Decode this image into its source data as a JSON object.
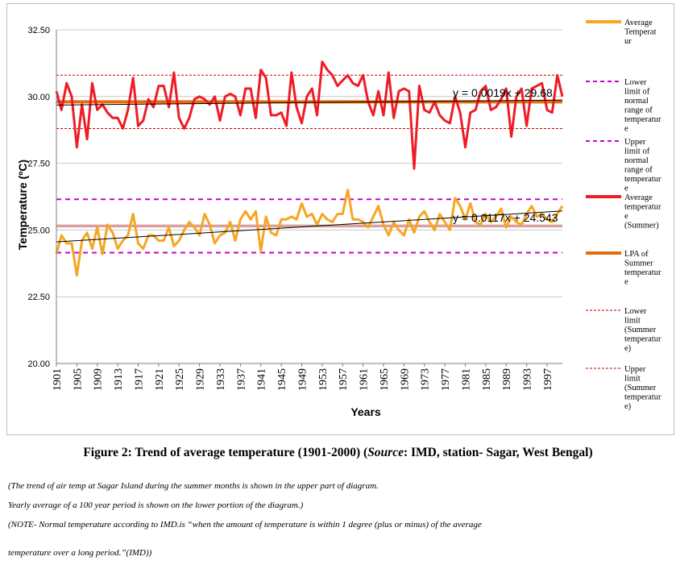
{
  "chart_data": {
    "type": "line",
    "xlabel": "Years",
    "ylabel": "Temperature (ºC)",
    "ylim": [
      20,
      32.5
    ],
    "yticks": [
      "20.00",
      "22.50",
      "25.00",
      "27.50",
      "30.00",
      "32.50"
    ],
    "xticks": [
      "1901",
      "1905",
      "1909",
      "1913",
      "1917",
      "1921",
      "1925",
      "1929",
      "1933",
      "1937",
      "1941",
      "1945",
      "1949",
      "1953",
      "1957",
      "1961",
      "1965",
      "1969",
      "1973",
      "1977",
      "1981",
      "1985",
      "1989",
      "1993",
      "1997"
    ],
    "x_start": 1901,
    "series": [
      {
        "name": "Average Temperature",
        "color": "#F5A623",
        "values": [
          24.1,
          24.8,
          24.5,
          24.5,
          23.3,
          24.6,
          24.9,
          24.3,
          25.1,
          24.1,
          25.2,
          24.9,
          24.3,
          24.6,
          24.8,
          25.6,
          24.5,
          24.3,
          24.8,
          24.8,
          24.6,
          24.6,
          25.1,
          24.4,
          24.6,
          25.0,
          25.3,
          25.1,
          24.8,
          25.6,
          25.2,
          24.5,
          24.8,
          24.9,
          25.3,
          24.6,
          25.4,
          25.7,
          25.4,
          25.7,
          24.2,
          25.5,
          24.9,
          24.8,
          25.4,
          25.4,
          25.5,
          25.4,
          26.0,
          25.5,
          25.6,
          25.2,
          25.6,
          25.4,
          25.3,
          25.6,
          25.6,
          26.5,
          25.4,
          25.4,
          25.3,
          25.1,
          25.5,
          25.9,
          25.2,
          24.8,
          25.3,
          25.0,
          24.8,
          25.4,
          24.9,
          25.5,
          25.7,
          25.3,
          25.0,
          25.6,
          25.3,
          25.0,
          26.2,
          25.9,
          25.4,
          26.0,
          25.3,
          25.2,
          25.6,
          25.3,
          25.5,
          25.8,
          25.1,
          25.5,
          25.3,
          25.2,
          25.6,
          25.9,
          25.5,
          25.6,
          25.4,
          25.3,
          25.6,
          25.9
        ]
      },
      {
        "name": "Average temperature (Summer)",
        "color": "#EE1C25",
        "values": [
          30.2,
          29.5,
          30.5,
          30.0,
          28.1,
          29.7,
          28.4,
          30.5,
          29.5,
          29.7,
          29.4,
          29.2,
          29.2,
          28.8,
          29.5,
          30.7,
          28.9,
          29.1,
          29.9,
          29.6,
          30.4,
          30.4,
          29.6,
          30.9,
          29.2,
          28.8,
          29.2,
          29.9,
          30.0,
          29.9,
          29.7,
          30.0,
          29.1,
          30.0,
          30.1,
          30.0,
          29.3,
          30.3,
          30.3,
          29.2,
          31.0,
          30.7,
          29.3,
          29.3,
          29.4,
          28.9,
          30.9,
          29.6,
          29.0,
          30.0,
          30.3,
          29.3,
          31.3,
          31.0,
          30.8,
          30.4,
          30.6,
          30.8,
          30.5,
          30.4,
          30.8,
          29.8,
          29.3,
          30.2,
          29.3,
          30.9,
          29.2,
          30.2,
          30.3,
          30.2,
          27.3,
          30.4,
          29.5,
          29.4,
          29.8,
          29.3,
          29.1,
          29.0,
          30.0,
          29.4,
          28.1,
          29.4,
          29.5,
          30.2,
          30.4,
          29.5,
          29.6,
          29.9,
          30.3,
          28.5,
          30.0,
          30.3,
          28.9,
          30.3,
          30.4,
          30.5,
          29.5,
          29.4,
          30.8,
          30.0
        ]
      }
    ],
    "reference_lines": [
      {
        "name": "Lower limit of normal range of temperature",
        "value": 24.15,
        "color": "#CC00CC",
        "style": "dashed"
      },
      {
        "name": "Upper limit of normal range of temperature",
        "value": 26.15,
        "color": "#CC00CC",
        "style": "dashed"
      },
      {
        "name": "LPA of Summer temperature",
        "value": 29.8,
        "color": "#E46C0A",
        "style": "solid"
      },
      {
        "name": "Lower limit (Summer temperature)",
        "value": 28.8,
        "color": "#CC0000",
        "style": "dotted"
      },
      {
        "name": "Upper limit (Summer temperature)",
        "value": 30.8,
        "color": "#CC0000",
        "style": "dotted"
      }
    ],
    "long_period_average_line": {
      "value": 25.15,
      "color": "#D9A0A0"
    },
    "trendlines": [
      {
        "label": "y = 0.0019x + 29.68",
        "slope": 0.0019,
        "intercept": 29.68,
        "color": "#000000"
      },
      {
        "label": "y = 0.0117x + 24.543",
        "slope": 0.0117,
        "intercept": 24.543,
        "color": "#000000"
      }
    ],
    "legend": [
      {
        "lines": [
          "Average",
          "Temperat",
          "ur"
        ],
        "color": "#F5A623",
        "style": "solid"
      },
      {
        "lines": [
          "Lower",
          "limit of",
          "normal",
          "range of",
          "temperatur",
          "e"
        ],
        "color": "#CC00CC",
        "style": "dashed"
      },
      {
        "lines": [
          "Upper",
          "limit of",
          "normal",
          "range of",
          "temperatur",
          "e"
        ],
        "color": "#CC00CC",
        "style": "dashed"
      },
      {
        "lines": [
          "Average",
          "temperatur",
          "e",
          "(Summer)"
        ],
        "color": "#EE1C25",
        "style": "solid"
      },
      {
        "lines": [
          "LPA of",
          "Summer",
          "temperatur",
          "e"
        ],
        "color": "#E46C0A",
        "style": "solid"
      },
      {
        "lines": [
          "Lower",
          "limit",
          "(Summer",
          "temperatur",
          "e)"
        ],
        "color": "#CC0000",
        "style": "dotted"
      },
      {
        "lines": [
          "Upper",
          "limit",
          "(Summer",
          "temperatur",
          "e)"
        ],
        "color": "#CC0000",
        "style": "dotted"
      }
    ],
    "legend_position": "right"
  },
  "caption": {
    "prefix": "Figure 2: Trend of average temperature (1901-2000) (",
    "source_word": "Source",
    "suffix": ": IMD, station- Sagar, West Bengal)"
  },
  "notes": [
    "(The trend of air temp at Sagar Island during the summer months is shown in the upper part of diagram.",
    "Yearly average of a 100 year period is shown on the lower portion of the diagram.)",
    "(NOTE- Normal temperature according to IMD.is “when the amount of temperature is within 1 degree (plus or minus) of the average",
    "temperature over a long period.”(IMD))"
  ]
}
